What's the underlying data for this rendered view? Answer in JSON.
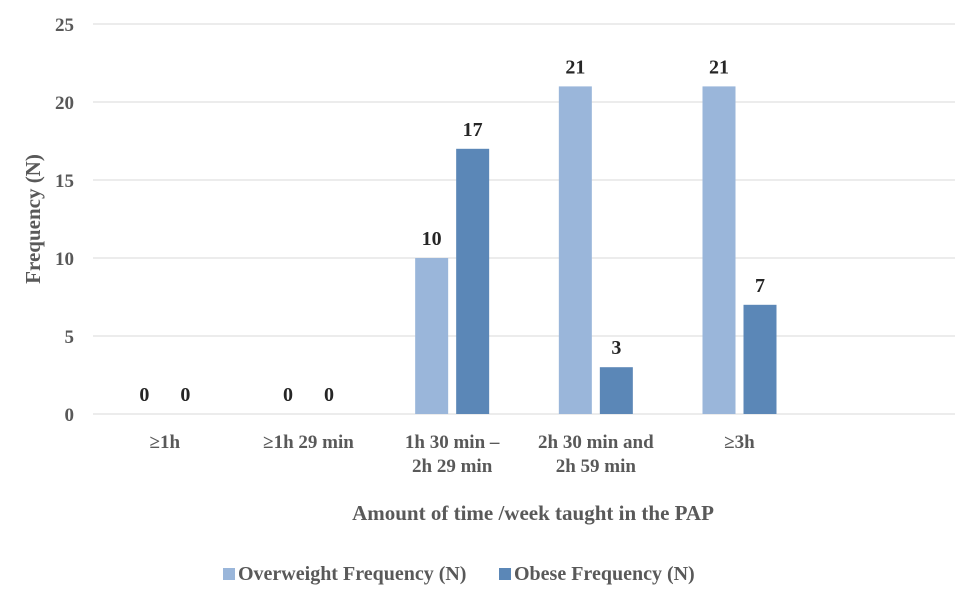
{
  "chart_data": {
    "type": "bar",
    "title": "",
    "xlabel": "Amount of time /week taught in the PAP",
    "ylabel": "Frequency (N)",
    "ylim": [
      0,
      25
    ],
    "yticks": [
      0,
      5,
      10,
      15,
      20,
      25
    ],
    "grid": true,
    "legend_position": "bottom",
    "categories": [
      [
        "≥1h"
      ],
      [
        "≥1h 29 min"
      ],
      [
        "1h 30 min –",
        "2h 29 min"
      ],
      [
        "2h 30 min and",
        "2h 59 min"
      ],
      [
        "≥3h"
      ]
    ],
    "series": [
      {
        "name": "Overweight Frequency (N)",
        "color": "#9ab6da",
        "values": [
          0,
          0,
          10,
          21,
          21
        ]
      },
      {
        "name": "Obese Frequency (N)",
        "color": "#5b87b7",
        "values": [
          0,
          0,
          17,
          3,
          7
        ]
      }
    ],
    "data_labels": true,
    "colors": {
      "grid": "#d9d9d9",
      "text": "#595959",
      "label": "#262626"
    }
  }
}
